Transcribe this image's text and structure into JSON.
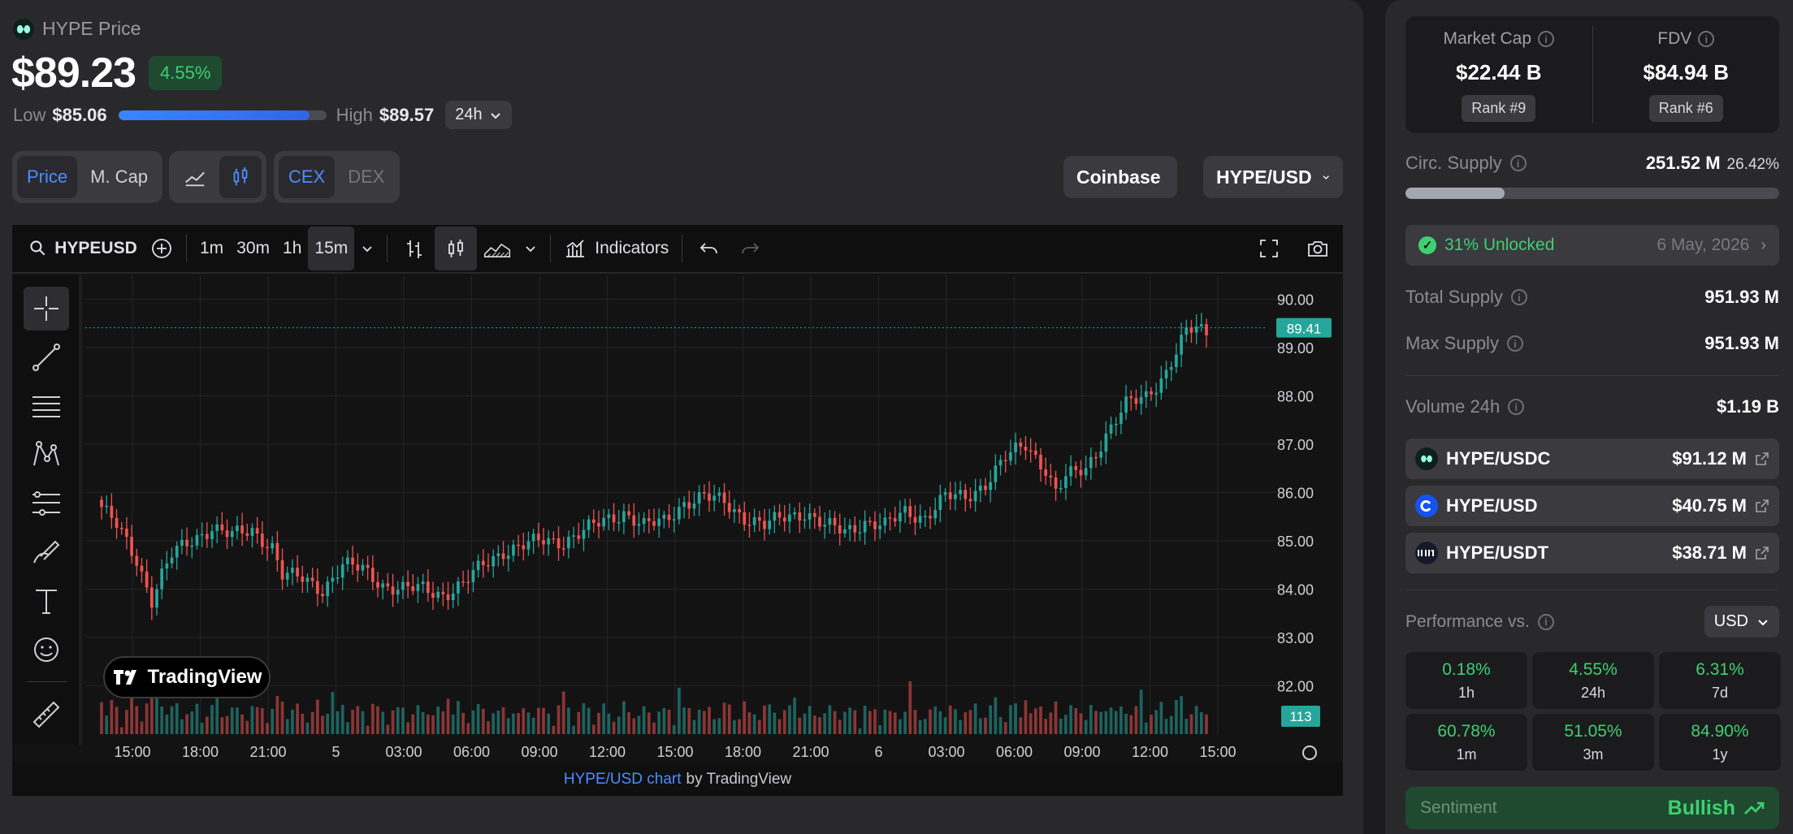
{
  "header": {
    "title": "HYPE Price",
    "price": "$89.23",
    "change": "4.55%",
    "low_label": "Low",
    "low_value": "$85.06",
    "high_label": "High",
    "high_value": "$89.57",
    "range_fraction": 0.92,
    "period": "24h"
  },
  "toggles": {
    "price": "Price",
    "mcap": "M. Cap",
    "cex": "CEX",
    "dex": "DEX"
  },
  "exchange": "Coinbase",
  "pair": "HYPE/USD",
  "tv": {
    "symbol": "HYPEUSD",
    "intervals": [
      "1m",
      "30m",
      "1h",
      "15m"
    ],
    "active_interval": "15m",
    "indicators": "Indicators",
    "logo_text": "TradingView",
    "footer_link": "HYPE/USD chart",
    "footer_by": "by TradingView",
    "price_ticks": [
      "90.00",
      "89.00",
      "88.00",
      "87.00",
      "86.00",
      "85.00",
      "84.00",
      "83.00",
      "82.00"
    ],
    "time_ticks": [
      "15:00",
      "18:00",
      "21:00",
      "5",
      "03:00",
      "06:00",
      "09:00",
      "12:00",
      "15:00",
      "18:00",
      "21:00",
      "6",
      "03:00",
      "06:00",
      "09:00",
      "12:00",
      "15:00"
    ],
    "last_price": "89.41",
    "last_volume": "113"
  },
  "chart_data": {
    "type": "candlestick",
    "symbol": "HYPE/USD",
    "interval": "15m",
    "ylim": [
      81.0,
      91.0
    ],
    "anchors": [
      [
        0,
        85.7
      ],
      [
        3,
        85.3
      ],
      [
        7,
        84.6
      ],
      [
        10,
        83.8
      ],
      [
        12,
        84.3
      ],
      [
        14,
        84.7
      ],
      [
        18,
        85.0
      ],
      [
        22,
        85.3
      ],
      [
        26,
        85.1
      ],
      [
        30,
        85.2
      ],
      [
        34,
        84.9
      ],
      [
        36,
        84.3
      ],
      [
        40,
        84.2
      ],
      [
        44,
        84.0
      ],
      [
        48,
        84.5
      ],
      [
        52,
        84.4
      ],
      [
        56,
        84.1
      ],
      [
        60,
        84.0
      ],
      [
        64,
        84.0
      ],
      [
        68,
        83.9
      ],
      [
        72,
        84.1
      ],
      [
        76,
        84.5
      ],
      [
        80,
        84.8
      ],
      [
        84,
        84.9
      ],
      [
        88,
        85.0
      ],
      [
        92,
        85.0
      ],
      [
        96,
        85.2
      ],
      [
        100,
        85.4
      ],
      [
        104,
        85.6
      ],
      [
        108,
        85.3
      ],
      [
        112,
        85.4
      ],
      [
        116,
        85.8
      ],
      [
        120,
        85.9
      ],
      [
        124,
        85.8
      ],
      [
        128,
        85.5
      ],
      [
        132,
        85.3
      ],
      [
        136,
        85.5
      ],
      [
        140,
        85.6
      ],
      [
        144,
        85.3
      ],
      [
        148,
        85.2
      ],
      [
        152,
        85.4
      ],
      [
        156,
        85.3
      ],
      [
        160,
        85.6
      ],
      [
        164,
        85.5
      ],
      [
        168,
        85.9
      ],
      [
        172,
        85.9
      ],
      [
        176,
        86.2
      ],
      [
        180,
        86.7
      ],
      [
        184,
        87.0
      ],
      [
        188,
        86.5
      ],
      [
        190,
        86.0
      ],
      [
        192,
        86.3
      ],
      [
        196,
        86.5
      ],
      [
        200,
        87.2
      ],
      [
        204,
        87.8
      ],
      [
        208,
        88.0
      ],
      [
        212,
        88.5
      ],
      [
        216,
        89.3
      ],
      [
        218,
        89.4
      ],
      [
        220,
        89.3
      ]
    ],
    "volume_peak": 113
  },
  "stats": {
    "market_cap_label": "Market Cap",
    "market_cap": "$22.44 B",
    "market_cap_rank": "Rank #9",
    "fdv_label": "FDV",
    "fdv": "$84.94 B",
    "fdv_rank": "Rank #6",
    "circ_label": "Circ. Supply",
    "circ_value": "251.52 M",
    "circ_pct": "26.42%",
    "circ_fraction": 0.2642,
    "unlocked": "31% Unlocked",
    "unlock_date": "6 May, 2026",
    "total_label": "Total Supply",
    "total_value": "951.93 M",
    "max_label": "Max Supply",
    "max_value": "951.93 M",
    "volume_label": "Volume 24h",
    "volume_value": "$1.19 B"
  },
  "markets": [
    {
      "name": "HYPE/USDC",
      "amount": "$91.12 M",
      "icon": "hyperliquid-icon",
      "color": "#0f1f1c"
    },
    {
      "name": "HYPE/USD",
      "amount": "$40.75 M",
      "icon": "coinbase-icon",
      "color": "#1652f0"
    },
    {
      "name": "HYPE/USDT",
      "amount": "$38.71 M",
      "icon": "bybit-icon",
      "color": "#15192a"
    }
  ],
  "performance": {
    "label": "Performance vs.",
    "currency": "USD",
    "cells": [
      {
        "value": "0.18%",
        "period": "1h"
      },
      {
        "value": "4.55%",
        "period": "24h"
      },
      {
        "value": "6.31%",
        "period": "7d"
      },
      {
        "value": "60.78%",
        "period": "1m"
      },
      {
        "value": "51.05%",
        "period": "3m"
      },
      {
        "value": "84.90%",
        "period": "1y"
      }
    ]
  },
  "sentiment": {
    "label": "Sentiment",
    "value": "Bullish"
  },
  "colors": {
    "up": "#26a69a",
    "down": "#ef5350",
    "positive": "#3fcf72",
    "accent": "#4d8cff"
  }
}
